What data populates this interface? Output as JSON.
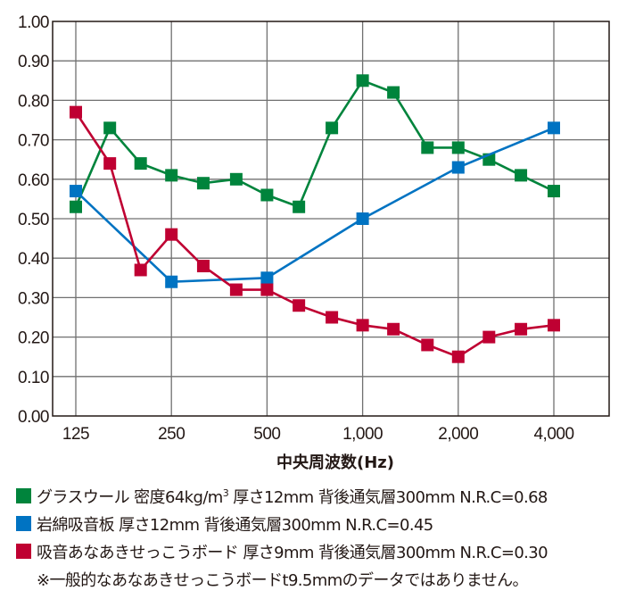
{
  "chart_data": {
    "type": "line",
    "title": "",
    "xlabel": "中央周波数(Hz)",
    "ylabel": "",
    "ylim": [
      0,
      1.0
    ],
    "yticks": [
      "0.00",
      "0.10",
      "0.20",
      "0.30",
      "0.40",
      "0.50",
      "0.60",
      "0.70",
      "0.80",
      "0.90",
      "1.00"
    ],
    "ytick_values": [
      0,
      0.1,
      0.2,
      0.3,
      0.4,
      0.5,
      0.6,
      0.7,
      0.8,
      0.9,
      1.0
    ],
    "x_scale": "log2",
    "xticks": [
      "125",
      "250",
      "500",
      "1,000",
      "2,000",
      "4,000"
    ],
    "xtick_values": [
      125,
      250,
      500,
      1000,
      2000,
      4000
    ],
    "xlim": [
      100,
      6300
    ],
    "grid": true,
    "legend_position": "bottom",
    "series": [
      {
        "name": "グラスウール 密度64kg/m³ 厚さ12mm 背後通気層300mm N.R.C=0.68",
        "color": "#00843c",
        "marker": "square",
        "x": [
          125,
          160,
          200,
          250,
          315,
          400,
          500,
          630,
          800,
          1000,
          1250,
          1600,
          2000,
          2500,
          3150,
          4000
        ],
        "values": [
          0.53,
          0.73,
          0.64,
          0.61,
          0.59,
          0.6,
          0.56,
          0.53,
          0.73,
          0.85,
          0.82,
          0.68,
          0.68,
          0.65,
          0.61,
          0.57
        ]
      },
      {
        "name": "岩綿吸音板 厚さ12mm 背後通気層300mm N.R.C=0.45",
        "color": "#0073c2",
        "marker": "square",
        "x": [
          125,
          250,
          500,
          1000,
          2000,
          4000
        ],
        "values": [
          0.57,
          0.34,
          0.35,
          0.5,
          0.63,
          0.73
        ]
      },
      {
        "name": "吸音あなあきせっこうボード 厚さ9mm 背後通気層300mm N.R.C=0.30",
        "color": "#bf0032",
        "marker": "square",
        "x": [
          125,
          160,
          200,
          250,
          315,
          400,
          500,
          630,
          800,
          1000,
          1250,
          1600,
          2000,
          2500,
          3150,
          4000
        ],
        "values": [
          0.77,
          0.64,
          0.37,
          0.46,
          0.38,
          0.32,
          0.32,
          0.28,
          0.25,
          0.23,
          0.22,
          0.18,
          0.15,
          0.2,
          0.22,
          0.23
        ]
      }
    ]
  },
  "legend": {
    "items": [
      {
        "label_main": "グラスウール 密度64kg/m",
        "label_sup": "3",
        "label_rest": " 厚さ12mm 背後通気層300mm N.R.C=0.68",
        "color": "#00843c"
      },
      {
        "label_main": "岩綿吸音板 厚さ12mm 背後通気層300mm N.R.C=0.45",
        "color": "#0073c2"
      },
      {
        "label_main": "吸音あなあきせっこうボード 厚さ9mm 背後通気層300mm N.R.C=0.30",
        "color": "#bf0032"
      }
    ],
    "note": "※一般的なあなあきせっこうボードt9.5mmのデータではありません。"
  },
  "colors": {
    "grid": "#707070",
    "frame": "#231815"
  }
}
